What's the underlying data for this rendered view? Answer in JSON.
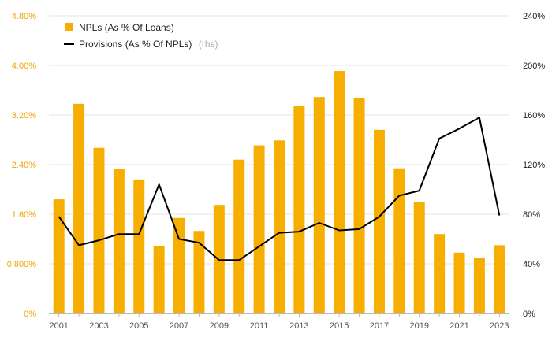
{
  "colors": {
    "bar": "#f6ae00",
    "line": "#000000",
    "left_axis_text": "#f0a500",
    "grid": "#e6e6e6",
    "axis": "#bbbbbb"
  },
  "legend": {
    "bar_label": "NPLs (As % Of Loans)",
    "line_label": "Provisions (As % Of NPLs)",
    "line_suffix": "(rhs)"
  },
  "chart_data": {
    "type": "bar",
    "categories": [
      "2001",
      "2002",
      "2003",
      "2004",
      "2005",
      "2006",
      "2007",
      "2008",
      "2009",
      "2010",
      "2011",
      "2012",
      "2013",
      "2014",
      "2015",
      "2016",
      "2017",
      "2018",
      "2019",
      "2020",
      "2021",
      "2022",
      "2023"
    ],
    "series": [
      {
        "name": "NPLs (As % Of Loans)",
        "type": "bar",
        "axis": "left",
        "values": [
          1.84,
          3.38,
          2.67,
          2.33,
          2.16,
          1.09,
          1.54,
          1.33,
          1.75,
          2.48,
          2.71,
          2.79,
          3.35,
          3.49,
          3.91,
          3.47,
          2.96,
          2.34,
          1.79,
          1.28,
          0.98,
          0.9,
          1.1
        ]
      },
      {
        "name": "Provisions (As % Of NPLs)",
        "type": "line",
        "axis": "right",
        "values": [
          78,
          55,
          59,
          64,
          64,
          104,
          60,
          57,
          43,
          43,
          54,
          65,
          66,
          73,
          67,
          68,
          78,
          95,
          99,
          141,
          149,
          158,
          79
        ]
      }
    ],
    "y_left": {
      "ticks": [
        "0%",
        "0.800%",
        "1.60%",
        "2.40%",
        "3.20%",
        "4.00%",
        "4.80%"
      ],
      "lim": [
        0,
        4.8
      ]
    },
    "y_right": {
      "ticks": [
        "0%",
        "40%",
        "80%",
        "120%",
        "160%",
        "200%",
        "240%"
      ],
      "lim": [
        0,
        240
      ]
    },
    "x_tick_labels": [
      "2001",
      "2003",
      "2005",
      "2007",
      "2009",
      "2011",
      "2013",
      "2015",
      "2017",
      "2019",
      "2021",
      "2023"
    ],
    "grid": true,
    "legend_position": "top-left"
  }
}
